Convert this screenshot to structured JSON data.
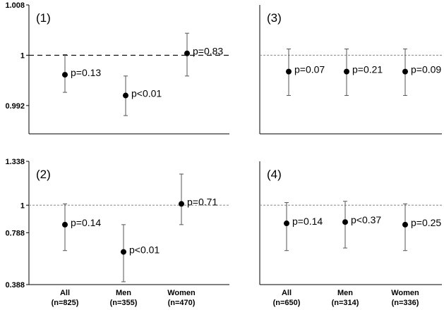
{
  "chart_data": [
    {
      "type": "scatter",
      "panel_label": "(1)",
      "categories": [
        "All",
        "Men",
        "Women"
      ],
      "values": [
        0.9969,
        0.9936,
        1.0003
      ],
      "error_low": [
        0.9941,
        0.9904,
        0.9967
      ],
      "error_high": [
        1.0001,
        0.9967,
        1.0035
      ],
      "point_labels": [
        "p=0.13",
        "p<0.01",
        "p=0.83"
      ],
      "ylim": [
        0.9875,
        1.008
      ],
      "yticks": [
        0.992,
        1,
        1.008
      ],
      "ytick_labels": [
        "0.992",
        "1",
        "1.008"
      ],
      "reference_line": 1
    },
    {
      "type": "scatter",
      "panel_label": "(3)",
      "categories": [
        "All",
        "Men",
        "Women"
      ],
      "values": [
        0.9974,
        0.9974,
        0.9974
      ],
      "error_low": [
        0.9936,
        0.9936,
        0.9936
      ],
      "error_high": [
        1.001,
        1.001,
        1.001
      ],
      "point_labels": [
        "p=0.07",
        "p=0.21",
        "p=0.09"
      ],
      "ylim": [
        0.9875,
        1.008
      ],
      "reference_line": 1
    },
    {
      "type": "scatter",
      "panel_label": "(2)",
      "categories": [
        "All",
        "Men",
        "Women"
      ],
      "category_labels": [
        "All\n(n=825)",
        "Men\n(n=355)",
        "Women\n(n=470)"
      ],
      "values": [
        0.85,
        0.64,
        1.01
      ],
      "error_low": [
        0.65,
        0.41,
        0.85
      ],
      "error_high": [
        1.01,
        0.85,
        1.24
      ],
      "point_labels": [
        "p=0.14",
        "p<0.01",
        "p=0.71"
      ],
      "ylim": [
        0.388,
        1.338
      ],
      "yticks": [
        0.388,
        0.788,
        1,
        1.338
      ],
      "ytick_labels": [
        "0.388",
        "0.788",
        "1",
        "1.338"
      ],
      "reference_line": 1
    },
    {
      "type": "scatter",
      "panel_label": "(4)",
      "categories": [
        "All",
        "Men",
        "Women"
      ],
      "category_labels": [
        "All\n(n=650)",
        "Men\n(n=314)",
        "Women\n(n=336)"
      ],
      "values": [
        0.86,
        0.87,
        0.85
      ],
      "error_low": [
        0.65,
        0.67,
        0.65
      ],
      "error_high": [
        1.02,
        1.03,
        1.01
      ],
      "point_labels": [
        "p=0.14",
        "p<0.37",
        "p=0.25"
      ],
      "ylim": [
        0.388,
        1.338
      ],
      "reference_line": 1
    }
  ]
}
